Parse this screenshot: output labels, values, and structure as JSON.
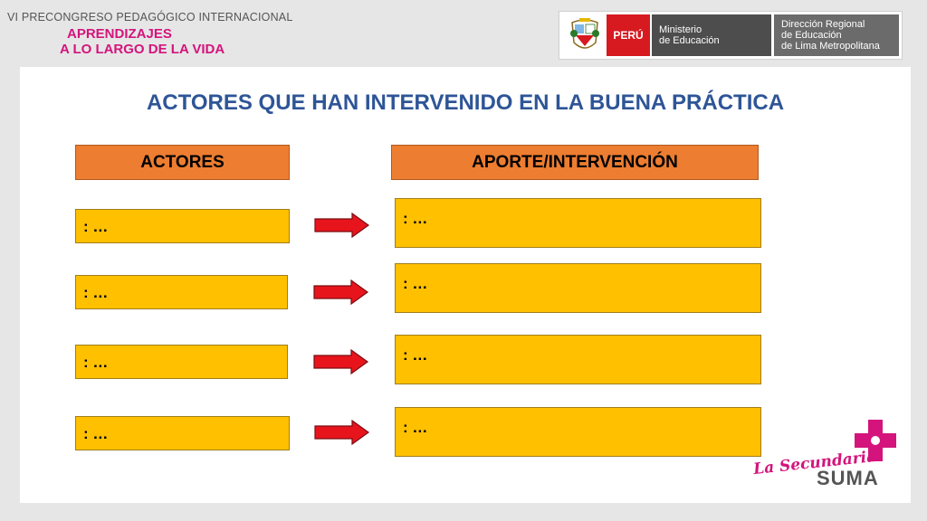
{
  "event": {
    "line1": "VI PRECONGRESO PEDAGÓGICO INTERNACIONAL",
    "line2": "APRENDIZAJES",
    "line3": "A LO LARGO DE LA VIDA"
  },
  "gov_banner": {
    "shield_icon": "peru-coat-of-arms-icon",
    "country": "PERÚ",
    "ministry_line1": "Ministerio",
    "ministry_line2": "de Educación",
    "direction_line1": "Dirección Regional",
    "direction_line2": "de Educación",
    "direction_line3": "de Lima Metropolitana"
  },
  "slide": {
    "title": "ACTORES QUE HAN INTERVENIDO EN LA BUENA PRÁCTICA",
    "col_actors": "ACTORES",
    "col_contribution": "APORTE/INTERVENCIÓN",
    "rows": [
      {
        "actor": ": …",
        "contribution": ": …"
      },
      {
        "actor": ": …",
        "contribution": ": …"
      },
      {
        "actor": ": …",
        "contribution": ": …"
      },
      {
        "actor": ": …",
        "contribution": ": …"
      }
    ]
  },
  "branding": {
    "script": "La Secundaria",
    "word": "SUMA"
  },
  "colors": {
    "title_blue": "#2e5597",
    "header_orange": "#ed7d31",
    "box_yellow": "#ffc000",
    "arrow_red": "#e8141c",
    "brand_magenta": "#d4147c"
  }
}
